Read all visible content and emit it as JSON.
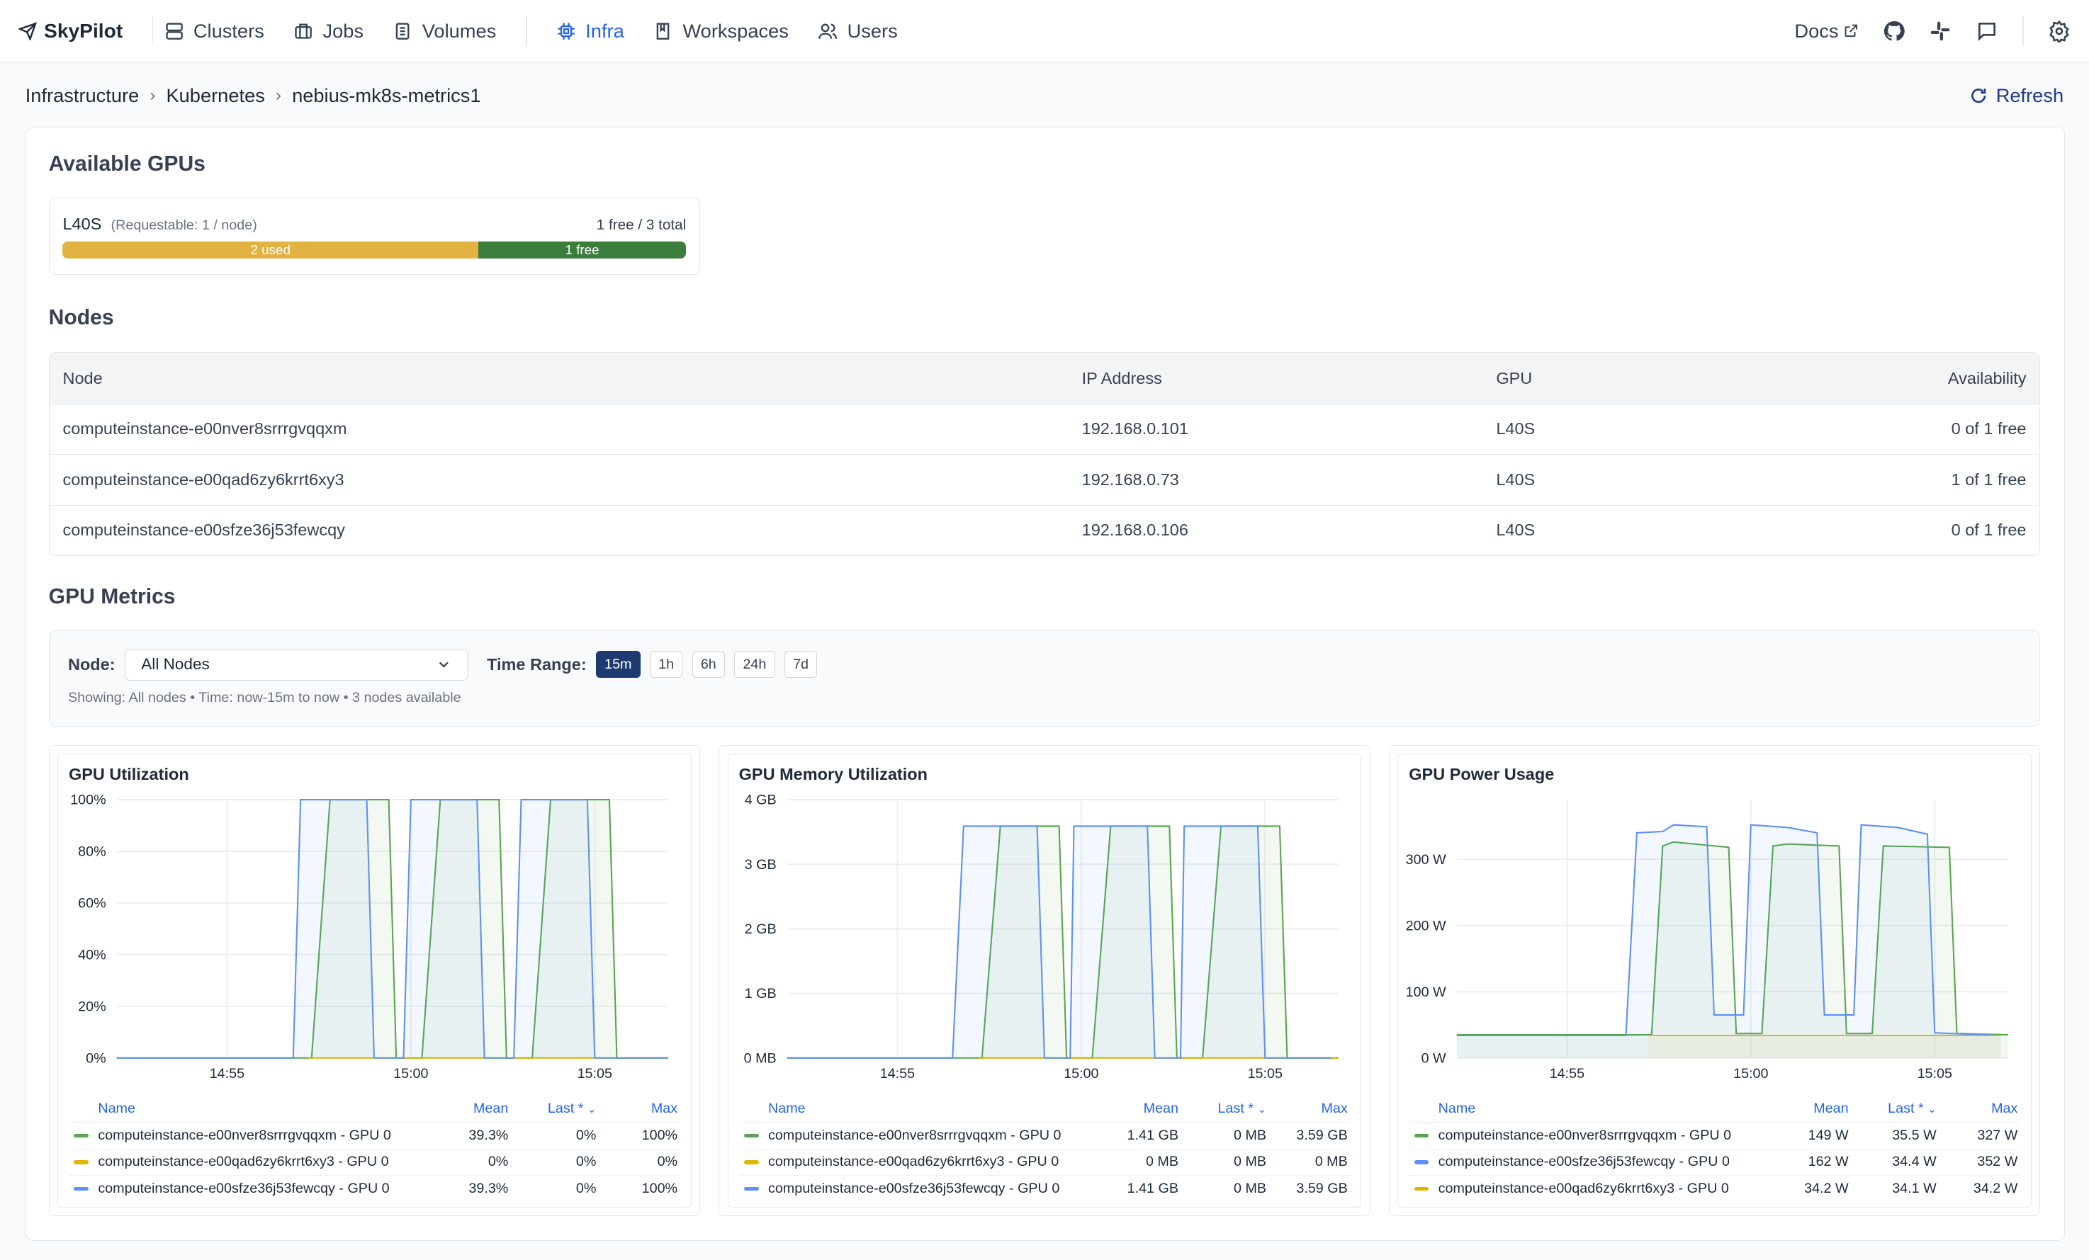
{
  "nav": {
    "brand": "SkyPilot",
    "items": [
      {
        "label": "Clusters",
        "icon": "server-icon"
      },
      {
        "label": "Jobs",
        "icon": "briefcase-icon"
      },
      {
        "label": "Volumes",
        "icon": "volume-icon"
      },
      {
        "label": "Infra",
        "icon": "cpu-icon",
        "active": true
      },
      {
        "label": "Workspaces",
        "icon": "book-icon"
      },
      {
        "label": "Users",
        "icon": "users-icon"
      }
    ],
    "docs": "Docs"
  },
  "breadcrumb": [
    "Infrastructure",
    "Kubernetes",
    "nebius-mk8s-metrics1"
  ],
  "refresh_label": "Refresh",
  "available_gpus": {
    "title": "Available GPUs",
    "gpu": {
      "name": "L40S",
      "requestable": "(Requestable: 1 / node)",
      "summary": "1 free / 3 total",
      "used_label": "2 used",
      "free_label": "1 free",
      "used": 2,
      "total": 3
    }
  },
  "nodes": {
    "title": "Nodes",
    "columns": [
      "Node",
      "IP Address",
      "GPU",
      "Availability"
    ],
    "rows": [
      [
        "computeinstance-e00nver8srrrgvqqxm",
        "192.168.0.101",
        "L40S",
        "0 of 1 free"
      ],
      [
        "computeinstance-e00qad6zy6krrt6xy3",
        "192.168.0.73",
        "L40S",
        "1 of 1 free"
      ],
      [
        "computeinstance-e00sfze36j53fewcqy",
        "192.168.0.106",
        "L40S",
        "0 of 1 free"
      ]
    ]
  },
  "metrics": {
    "title": "GPU Metrics",
    "node_label": "Node:",
    "node_value": "All Nodes",
    "time_label": "Time Range:",
    "ranges": [
      "15m",
      "1h",
      "6h",
      "24h",
      "7d"
    ],
    "active_range": "15m",
    "showing": "Showing: All nodes • Time: now-15m to now • 3 nodes available"
  },
  "legend_headers": {
    "name": "Name",
    "mean": "Mean",
    "last": "Last *",
    "max": "Max"
  },
  "colors": {
    "green": "#56a64b",
    "yellow": "#e0b400",
    "blue": "#5b8ff9",
    "accent": "#2563eb"
  },
  "chart_data": [
    {
      "type": "line",
      "title": "GPU Utilization",
      "x_ticks": [
        "14:55",
        "15:00",
        "15:05"
      ],
      "y_ticks": [
        "0%",
        "20%",
        "40%",
        "60%",
        "80%",
        "100%"
      ],
      "ylim": [
        0,
        100
      ],
      "x": [
        "14:51",
        "14:56",
        "14:57",
        "14:58",
        "14:59",
        "15:00",
        "15:01",
        "15:02",
        "15:03",
        "15:04",
        "15:05",
        "15:06"
      ],
      "series": [
        {
          "name": "computeinstance-e00nver8srrrgvqqxm - GPU 0",
          "color": "green",
          "mean": "39.3%",
          "last": "0%",
          "max": "100%",
          "points": [
            [
              0,
              0
            ],
            [
              5.3,
              0
            ],
            [
              5.8,
              100
            ],
            [
              7.4,
              100
            ],
            [
              7.6,
              0
            ],
            [
              8.3,
              0
            ],
            [
              8.8,
              100
            ],
            [
              10.4,
              100
            ],
            [
              10.6,
              0
            ],
            [
              11.3,
              0
            ],
            [
              11.8,
              100
            ],
            [
              13.4,
              100
            ],
            [
              13.6,
              0
            ],
            [
              15,
              0
            ]
          ]
        },
        {
          "name": "computeinstance-e00qad6zy6krrt6xy3 - GPU 0",
          "color": "yellow",
          "mean": "0%",
          "last": "0%",
          "max": "0%",
          "points": [
            [
              5.2,
              0
            ],
            [
              15,
              0
            ]
          ]
        },
        {
          "name": "computeinstance-e00sfze36j53fewcqy - GPU 0",
          "color": "blue",
          "mean": "39.3%",
          "last": "0%",
          "max": "100%",
          "points": [
            [
              0,
              0
            ],
            [
              4.8,
              0
            ],
            [
              5.0,
              100
            ],
            [
              6.8,
              100
            ],
            [
              7.0,
              0
            ],
            [
              7.8,
              0
            ],
            [
              8.0,
              100
            ],
            [
              9.8,
              100
            ],
            [
              10.0,
              0
            ],
            [
              10.8,
              0
            ],
            [
              11.0,
              100
            ],
            [
              12.8,
              100
            ],
            [
              13.0,
              0
            ],
            [
              15,
              0
            ]
          ]
        }
      ]
    },
    {
      "type": "line",
      "title": "GPU Memory Utilization",
      "x_ticks": [
        "14:55",
        "15:00",
        "15:05"
      ],
      "y_ticks": [
        "0 MB",
        "1 GB",
        "2 GB",
        "3 GB",
        "4 GB"
      ],
      "ylim": [
        0,
        4
      ],
      "series": [
        {
          "name": "computeinstance-e00nver8srrrgvqqxm - GPU 0",
          "color": "green",
          "mean": "1.41 GB",
          "last": "0 MB",
          "max": "3.59 GB",
          "points": [
            [
              0,
              0
            ],
            [
              5.3,
              0
            ],
            [
              5.8,
              3.59
            ],
            [
              7.4,
              3.59
            ],
            [
              7.6,
              0
            ],
            [
              8.3,
              0
            ],
            [
              8.8,
              3.59
            ],
            [
              10.4,
              3.59
            ],
            [
              10.6,
              0
            ],
            [
              11.3,
              0
            ],
            [
              11.8,
              3.59
            ],
            [
              13.4,
              3.59
            ],
            [
              13.6,
              0
            ],
            [
              15,
              0
            ]
          ]
        },
        {
          "name": "computeinstance-e00qad6zy6krrt6xy3 - GPU 0",
          "color": "yellow",
          "mean": "0 MB",
          "last": "0 MB",
          "max": "0 MB",
          "points": [
            [
              5.2,
              0
            ],
            [
              15,
              0
            ]
          ]
        },
        {
          "name": "computeinstance-e00sfze36j53fewcqy - GPU 0",
          "color": "blue",
          "mean": "1.41 GB",
          "last": "0 MB",
          "max": "3.59 GB",
          "points": [
            [
              0,
              0
            ],
            [
              4.5,
              0
            ],
            [
              4.8,
              3.59
            ],
            [
              6.8,
              3.59
            ],
            [
              7.0,
              0
            ],
            [
              7.7,
              0
            ],
            [
              7.8,
              3.59
            ],
            [
              9.8,
              3.59
            ],
            [
              10.0,
              0
            ],
            [
              10.7,
              0
            ],
            [
              10.8,
              3.59
            ],
            [
              12.8,
              3.59
            ],
            [
              13.0,
              0
            ],
            [
              14.8,
              0
            ]
          ]
        }
      ]
    },
    {
      "type": "area",
      "title": "GPU Power Usage",
      "x_ticks": [
        "14:55",
        "15:00",
        "15:05"
      ],
      "y_ticks": [
        "0 W",
        "100 W",
        "200 W",
        "300 W"
      ],
      "ylim": [
        0,
        390
      ],
      "series": [
        {
          "name": "computeinstance-e00nver8srrrgvqqxm - GPU 0",
          "color": "green",
          "mean": "149 W",
          "last": "35.5 W",
          "max": "327 W",
          "points": [
            [
              0,
              35
            ],
            [
              5.3,
              35
            ],
            [
              5.6,
              320
            ],
            [
              5.9,
              326
            ],
            [
              7.4,
              318
            ],
            [
              7.6,
              37
            ],
            [
              8.3,
              37
            ],
            [
              8.6,
              320
            ],
            [
              9.0,
              323
            ],
            [
              10.4,
              320
            ],
            [
              10.6,
              37
            ],
            [
              11.3,
              37
            ],
            [
              11.6,
              320
            ],
            [
              13.4,
              318
            ],
            [
              13.6,
              37
            ],
            [
              15,
              35
            ]
          ]
        },
        {
          "name": "computeinstance-e00sfze36j53fewcqy - GPU 0",
          "color": "blue",
          "mean": "162 W",
          "last": "34.4 W",
          "max": "352 W",
          "points": [
            [
              0,
              34
            ],
            [
              4.6,
              34
            ],
            [
              4.9,
              340
            ],
            [
              5.6,
              342
            ],
            [
              5.9,
              352
            ],
            [
              6.8,
              349
            ],
            [
              7.0,
              65
            ],
            [
              7.8,
              65
            ],
            [
              8.0,
              352
            ],
            [
              9.0,
              348
            ],
            [
              9.8,
              340
            ],
            [
              10.0,
              65
            ],
            [
              10.8,
              65
            ],
            [
              11.0,
              352
            ],
            [
              12.0,
              348
            ],
            [
              12.8,
              338
            ],
            [
              13.0,
              38
            ],
            [
              14.8,
              34
            ]
          ]
        },
        {
          "name": "computeinstance-e00qad6zy6krrt6xy3 - GPU 0",
          "color": "yellow",
          "mean": "34.2 W",
          "last": "34.1 W",
          "max": "34.2 W",
          "points": [
            [
              5.2,
              34
            ],
            [
              14.8,
              34
            ]
          ]
        }
      ]
    }
  ]
}
